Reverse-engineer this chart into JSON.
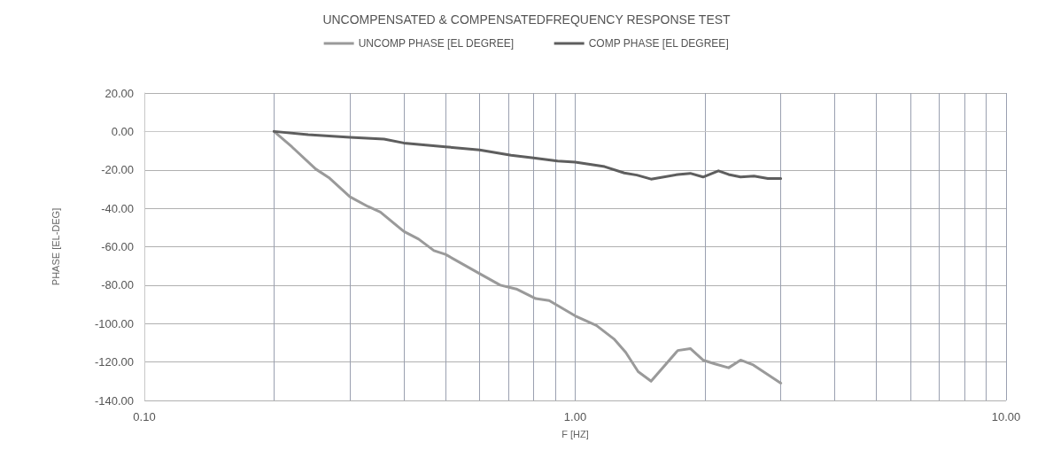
{
  "chart_data": {
    "type": "line",
    "title": "UNCOMPENSATED & COMPENSATEDFREQUENCY RESPONSE TEST",
    "xlabel": "F [HZ]",
    "ylabel": "PHASE [EL-DEG]",
    "log": "x",
    "grid": true,
    "legend": "top",
    "marker": "none",
    "line_style": "solid",
    "xlim": [
      0.1,
      10
    ],
    "ylim": [
      -140,
      20
    ],
    "xticks": [
      {
        "value": 0.1,
        "label": "0.10"
      },
      {
        "value": 0.2,
        "label": null
      },
      {
        "value": 0.3,
        "label": null
      },
      {
        "value": 0.4,
        "label": null
      },
      {
        "value": 0.5,
        "label": null
      },
      {
        "value": 0.6,
        "label": null
      },
      {
        "value": 0.7,
        "label": null
      },
      {
        "value": 0.8,
        "label": null
      },
      {
        "value": 0.9,
        "label": null
      },
      {
        "value": 1,
        "label": "1.00"
      },
      {
        "value": 2,
        "label": null
      },
      {
        "value": 3,
        "label": null
      },
      {
        "value": 4,
        "label": null
      },
      {
        "value": 5,
        "label": null
      },
      {
        "value": 6,
        "label": null
      },
      {
        "value": 7,
        "label": null
      },
      {
        "value": 8,
        "label": null
      },
      {
        "value": 9,
        "label": null
      },
      {
        "value": 10,
        "label": "10.00"
      }
    ],
    "yticks": [
      {
        "value": -140,
        "label": "-140.00"
      },
      {
        "value": -120,
        "label": "-120.00"
      },
      {
        "value": -100,
        "label": "-100.00"
      },
      {
        "value": -80,
        "label": "-80.00"
      },
      {
        "value": -60,
        "label": "-60.00"
      },
      {
        "value": -40,
        "label": "-40.00"
      },
      {
        "value": -20,
        "label": "-20.00"
      },
      {
        "value": 0,
        "label": "0.00"
      },
      {
        "value": 20,
        "label": "20.00"
      }
    ],
    "series": [
      {
        "name": "UNCOMP PHASE [EL DEGREE]",
        "color": "#9a9a9a",
        "x": [
          0.2,
          0.22,
          0.25,
          0.268,
          0.3,
          0.33,
          0.353,
          0.4,
          0.433,
          0.47,
          0.5,
          0.6,
          0.67,
          0.73,
          0.81,
          0.87,
          1.0,
          1.12,
          1.23,
          1.31,
          1.4,
          1.5,
          1.73,
          1.85,
          1.98,
          2.11,
          2.27,
          2.42,
          2.59,
          3.0
        ],
        "values": [
          0,
          -8,
          -19.6,
          -24,
          -34,
          -39,
          -42,
          -52,
          -56,
          -62,
          -64,
          -74,
          -80,
          -82,
          -87,
          -88,
          -96,
          -101,
          -108,
          -115,
          -125,
          -130,
          -114,
          -113,
          -119,
          -121,
          -123,
          -119,
          -121.5,
          -131
        ]
      },
      {
        "name": "COMP PHASE [EL DEGREE]",
        "color": "#5e5e5e",
        "x": [
          0.2,
          0.24,
          0.3,
          0.36,
          0.4,
          0.5,
          0.6,
          0.71,
          0.8,
          0.91,
          1.0,
          1.17,
          1.3,
          1.39,
          1.5,
          1.73,
          1.85,
          1.98,
          2.15,
          2.27,
          2.42,
          2.6,
          2.8,
          3.0
        ],
        "values": [
          0,
          -1.7,
          -3,
          -4,
          -6,
          -8,
          -9.6,
          -12.4,
          -13.8,
          -15.4,
          -16,
          -18.3,
          -21.6,
          -22.7,
          -24.8,
          -22.4,
          -21.8,
          -23.7,
          -20.5,
          -22.4,
          -23.7,
          -23.2,
          -24.5,
          -24.5
        ]
      }
    ]
  }
}
